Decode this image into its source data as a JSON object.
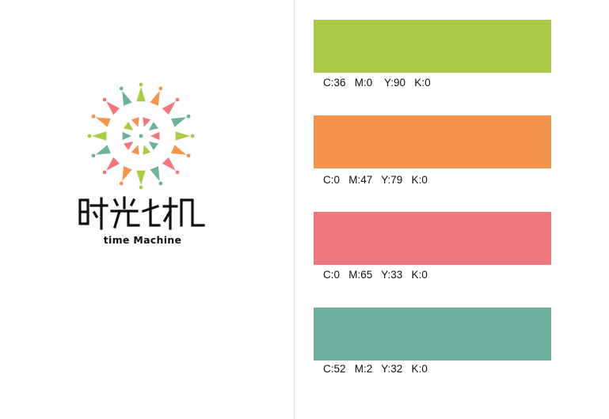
{
  "logo": {
    "name_cn": "时光机",
    "name_en": "time Machine"
  },
  "palette": [
    {
      "color": "#abcb48",
      "label": "C:36   M:0    Y:90   K:0"
    },
    {
      "color": "#f5944c",
      "label": "C:0   M:47   Y:79   K:0"
    },
    {
      "color": "#f0787c",
      "label": "C:0   M:65   Y:33   K:0"
    },
    {
      "color": "#6fb19f",
      "label": "C:52   M:2   Y:32   K:0"
    }
  ]
}
